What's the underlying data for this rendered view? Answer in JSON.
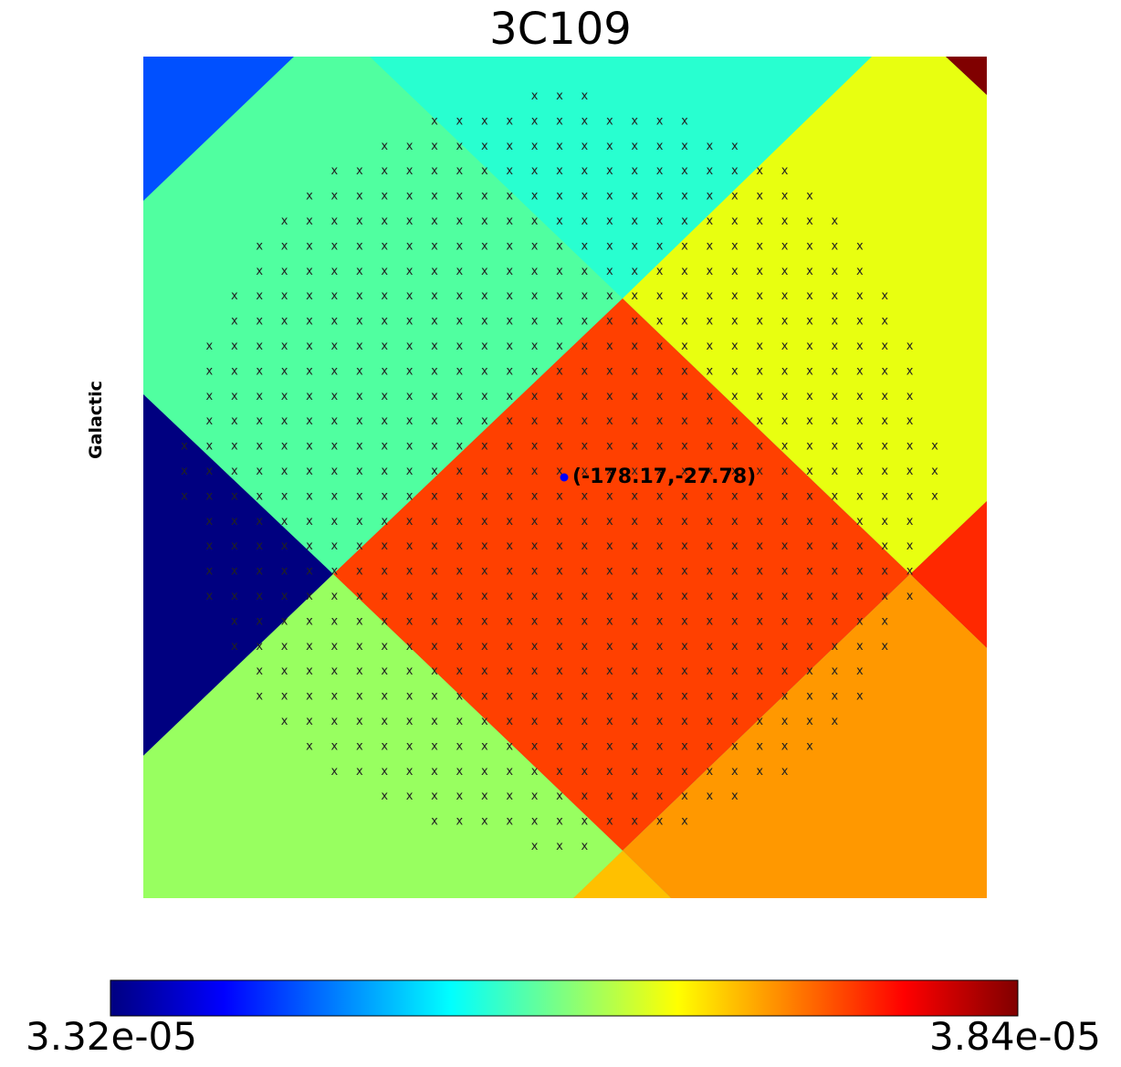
{
  "chart_data": {
    "type": "heatmap",
    "title": "3C109",
    "coord_label": "Galactic",
    "point_label": "(-178.17,-27.78)",
    "point_coords": [
      -178.17,
      -27.78
    ],
    "colorbar": {
      "min_label": "3.32e-05",
      "max_label": "3.84e-05",
      "min": 3.32e-05,
      "max": 3.84e-05,
      "colormap": "jet"
    },
    "regions": [
      {
        "name": "top-left-corner",
        "color": "#0050ff"
      },
      {
        "name": "upper-left-mid",
        "color": "#50ffa0"
      },
      {
        "name": "top-center",
        "color": "#28ffd0"
      },
      {
        "name": "upper-right",
        "color": "#e8ff10"
      },
      {
        "name": "top-right-corner",
        "color": "#800000"
      },
      {
        "name": "left",
        "color": "#000080"
      },
      {
        "name": "center",
        "color": "#ff4000"
      },
      {
        "name": "right-edge",
        "color": "#ff2800"
      },
      {
        "name": "lower-left",
        "color": "#98ff60"
      },
      {
        "name": "lower-right",
        "color": "#ff9800"
      },
      {
        "name": "bottom-small",
        "color": "#ffc000"
      }
    ],
    "point_color": "#0000ff",
    "marker_symbol": "x"
  }
}
